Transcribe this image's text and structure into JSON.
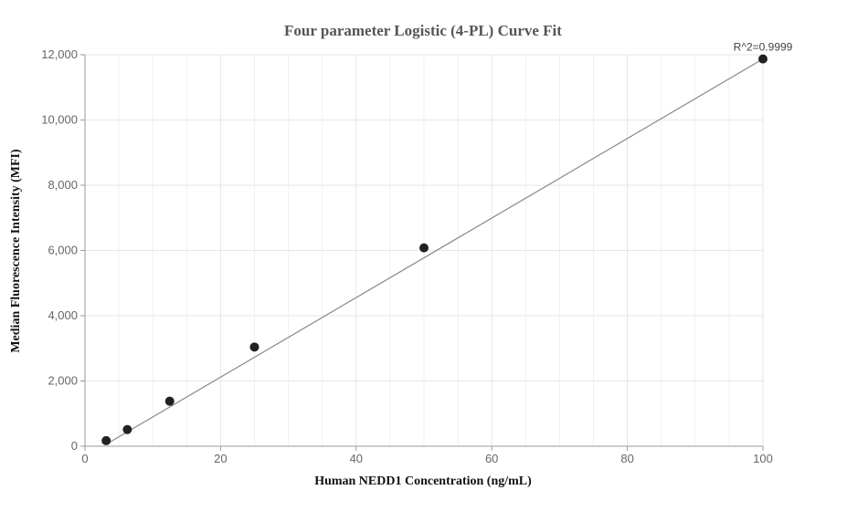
{
  "chart_data": {
    "type": "scatter",
    "title": "Four parameter Logistic (4-PL) Curve Fit",
    "xlabel": "Human NEDD1 Concentration (ng/mL)",
    "ylabel": "Median Fluorescence Intensity (MFI)",
    "xlim": [
      0,
      100
    ],
    "ylim": [
      0,
      12000
    ],
    "x_ticks": [
      0,
      20,
      40,
      60,
      80,
      100
    ],
    "x_tick_labels": [
      "0",
      "20",
      "40",
      "60",
      "80",
      "100"
    ],
    "y_ticks": [
      0,
      2000,
      4000,
      6000,
      8000,
      10000,
      12000
    ],
    "y_tick_labels": [
      "0",
      "2,000",
      "4,000",
      "6,000",
      "8,000",
      "10,000",
      "12,000"
    ],
    "grid": true,
    "series": [
      {
        "points": [
          {
            "x": 3.125,
            "y": 170
          },
          {
            "x": 6.25,
            "y": 510
          },
          {
            "x": 12.5,
            "y": 1380
          },
          {
            "x": 25,
            "y": 3040
          },
          {
            "x": 50,
            "y": 6080
          },
          {
            "x": 100,
            "y": 11870
          }
        ]
      }
    ],
    "fit_line": {
      "type": "4-PL",
      "points": [
        {
          "x": 3.125,
          "y": 60
        },
        {
          "x": 100,
          "y": 11870
        }
      ]
    },
    "annotation": "R^2=0.9999",
    "colors": {
      "marker": "#222222",
      "fit_line": "#888888",
      "grid": "#e6e6e6",
      "axis": "#999999"
    }
  }
}
